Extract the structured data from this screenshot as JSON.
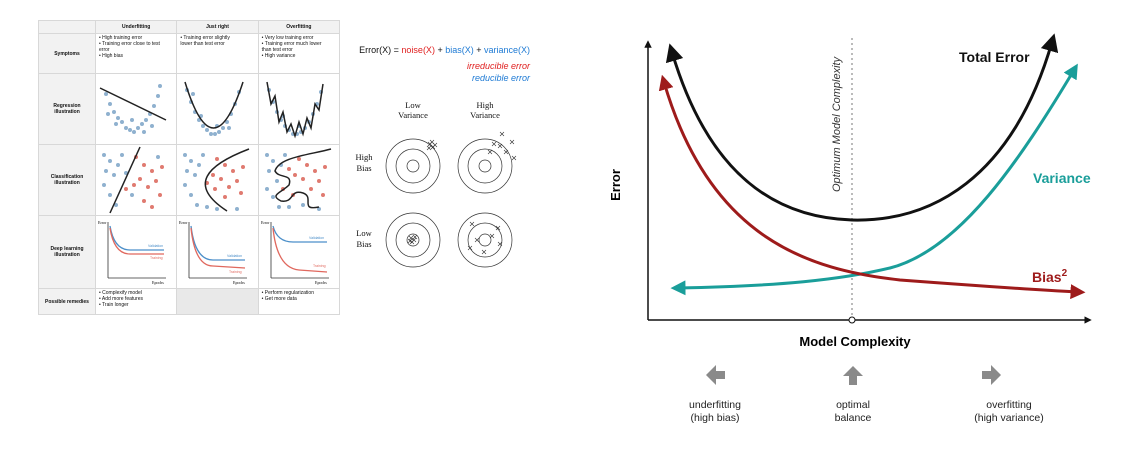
{
  "table": {
    "columns": [
      "Underfitting",
      "Just right",
      "Overfitting"
    ],
    "rows": [
      {
        "header": "Symptoms",
        "cells": [
          [
            "• High training error",
            "• Training error close to test",
            "error",
            "• High bias"
          ],
          [
            "• Training error slightly",
            "lower than test error"
          ],
          [
            "• Very low training error",
            "• Training error much lower",
            "than test error",
            "• High variance"
          ]
        ]
      },
      {
        "header": "Regression illustration"
      },
      {
        "header": "Classification illustration"
      },
      {
        "header": "Deep learning illustration",
        "axis_y": "Error",
        "axis_x": "Epochs",
        "legend_validation": "Validation",
        "legend_training": "Training"
      },
      {
        "header": "Possible remedies",
        "cells": [
          [
            "• Complexify model",
            "• Add more features",
            "• Train longer"
          ],
          [],
          [
            "• Perform regularization",
            "• Get more data"
          ]
        ]
      }
    ]
  },
  "formula": {
    "lhs": "Error(X) = ",
    "noise": "noise(X)",
    "plus1": " + ",
    "bias": "bias(X)",
    "plus2": " + ",
    "variance": "variance(X)",
    "irreducible": "irreducible error",
    "reducible": "reducible error"
  },
  "targets": {
    "col1": [
      "Low",
      "Variance"
    ],
    "col2": [
      "High",
      "Variance"
    ],
    "row1": [
      "High",
      "Bias"
    ],
    "row2": [
      "Low",
      "Bias"
    ]
  },
  "chart": {
    "ylabel": "Error",
    "xlabel": "Model Complexity",
    "vline_label": "Optimum Model Complexity",
    "total_label": "Total Error",
    "variance_label": "Variance",
    "bias_label": "Bias",
    "bias_sup": "2",
    "arrows": [
      {
        "label": [
          "underfitting",
          "(high bias)"
        ]
      },
      {
        "label": [
          "optimal",
          "balance"
        ]
      },
      {
        "label": [
          "overfitting",
          "(high variance)"
        ]
      }
    ],
    "colors": {
      "total": "#111111",
      "variance": "#1a9e9a",
      "bias": "#9e1b1b",
      "gray": "#8a8a8a"
    }
  }
}
